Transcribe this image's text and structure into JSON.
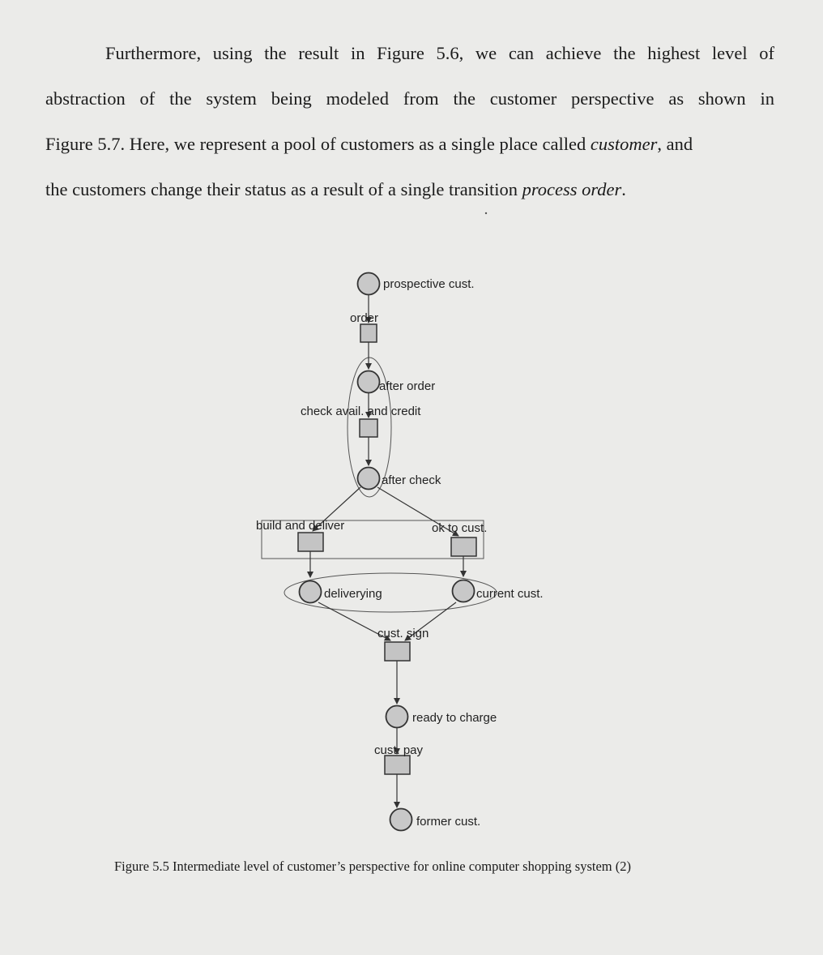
{
  "paragraph": {
    "line1": "Furthermore, using the result in Figure 5.6, we can achieve the highest level of",
    "line2": "abstraction of the system being modeled from the customer perspective as shown in",
    "line3_a": "Figure 5.7. Here, we represent a pool of customers as a single place called ",
    "line3_em": "customer",
    "line3_b": ", and",
    "line4_a": "the customers change their status as a result of a single transition ",
    "line4_em": "process order",
    "line4_b": "."
  },
  "diagram": {
    "places": {
      "prospective_cust": "prospective cust.",
      "after_order": "after order",
      "after_check": "after check",
      "delivering": "deliverying",
      "current_cust": "current cust.",
      "ready_to_charge": "ready to charge",
      "former_cust": "former cust."
    },
    "transitions": {
      "order": "order",
      "check_avail_credit": "check avail. and credit",
      "build_and_deliver": "build and deliver",
      "ok_to_cust": "ok to cust.",
      "cust_sign": "cust. sign",
      "cust_pay": "cust. pay"
    }
  },
  "caption": "Figure 5.5 Intermediate level of customer’s perspective for online computer shopping system (2)"
}
